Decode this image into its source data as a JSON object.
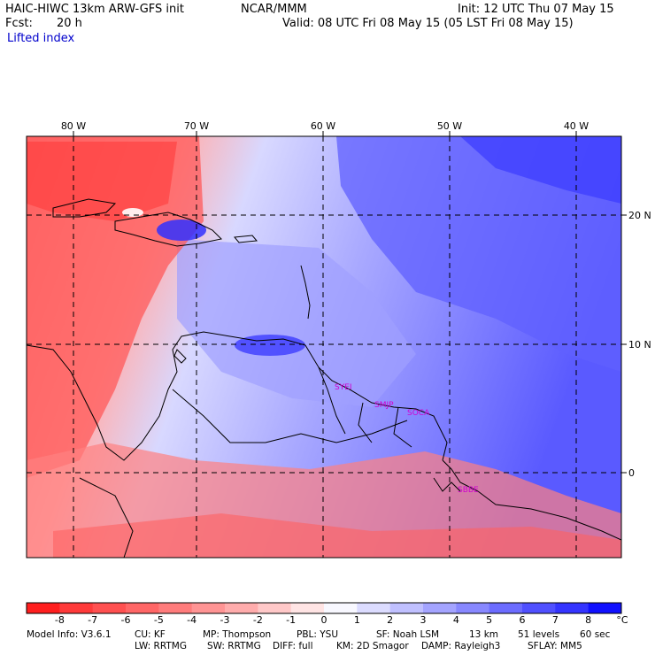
{
  "header": {
    "model_title": "HAIC-HIWC 13km ARW-GFS init",
    "org": "NCAR/MMM",
    "init": "Init: 12 UTC Thu 07 May 15",
    "fcst_label": "Fcst:",
    "fcst_value": "20 h",
    "valid": "Valid: 08 UTC Fri 08 May 15 (05 LST Fri 08 May 15)",
    "field": "Lifted index"
  },
  "map": {
    "longitude_labels": [
      "80 W",
      "70 W",
      "60 W",
      "50 W",
      "40 W"
    ],
    "latitude_labels": [
      "20 N",
      "10 N",
      "0"
    ],
    "stations": [
      "SYEI",
      "SMJP",
      "SOCA",
      "SBBE"
    ],
    "colors": {
      "low": "#ff0000",
      "high": "#0000e0"
    }
  },
  "colorbar": {
    "labels": [
      "-8",
      "-7",
      "-6",
      "-5",
      "-4",
      "-3",
      "-2",
      "-1",
      "0",
      "1",
      "2",
      "3",
      "4",
      "5",
      "6",
      "7",
      "8"
    ],
    "unit": "°C",
    "colors": [
      "#ff1e1e",
      "#ff3a3a",
      "#ff5050",
      "#ff6666",
      "#ff7c7c",
      "#ff9494",
      "#ffacac",
      "#ffc8c8",
      "#ffe4e4",
      "#f8f8ff",
      "#dcdcff",
      "#c0c0ff",
      "#a4a4ff",
      "#8888ff",
      "#6c6cff",
      "#5050ff",
      "#3434ff",
      "#1010ff"
    ]
  },
  "footer": {
    "line1": [
      "Model Info: V3.6.1",
      "CU: KF",
      "MP: Thompson",
      "PBL: YSU",
      "SF: Noah LSM",
      "13 km",
      "51 levels",
      "60 sec"
    ],
    "line2": [
      "LW: RRTMG",
      "SW: RRTMG",
      "DIFF: full",
      "KM: 2D Smagor",
      "DAMP: Rayleigh3",
      "SFLAY: MM5"
    ]
  }
}
